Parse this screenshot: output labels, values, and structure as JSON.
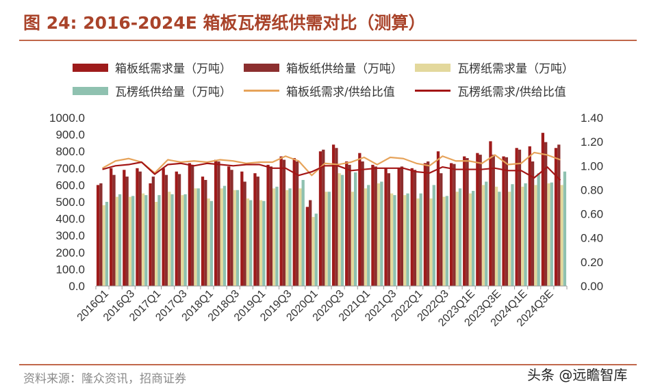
{
  "title": "图 24:  2016-2024E 箱板瓦楞纸供需对比（测算）",
  "source": "资料来源：隆众资讯，招商证券",
  "watermark": "头条 @远瞻智库",
  "colors": {
    "box_demand": "#9e1b1b",
    "box_supply": "#8c2f2f",
    "corr_demand": "#e3d89c",
    "corr_supply": "#8fc1b0",
    "box_ratio": "#e6a35a",
    "corr_ratio": "#a31515"
  },
  "chart_data": {
    "type": "bar+line",
    "title": "2016-2024E 箱板瓦楞纸供需对比（测算）",
    "categories": [
      "2016Q1",
      "2016Q2",
      "2016Q3",
      "2016Q4",
      "2017Q1",
      "2017Q2",
      "2017Q3",
      "2017Q4",
      "2018Q1",
      "2018Q2",
      "2018Q3",
      "2018Q4",
      "2019Q1",
      "2019Q2",
      "2019Q3",
      "2019Q4",
      "2020Q1",
      "2020Q2",
      "2020Q3",
      "2020Q4",
      "2021Q1",
      "2021Q2",
      "2021Q3",
      "2021Q4",
      "2022Q1",
      "2022Q2",
      "2022Q3",
      "2022Q4",
      "2023Q1E",
      "2023Q2E",
      "2023Q3E",
      "2023Q4E",
      "2024Q1E",
      "2024Q2E",
      "2024Q3E",
      "2024Q4E"
    ],
    "tick_labels": [
      "2016Q1",
      "2016Q3",
      "2017Q1",
      "2017Q3",
      "2018Q1",
      "2018Q3",
      "2019Q1",
      "2019Q3",
      "2020Q1",
      "2020Q3",
      "2021Q1",
      "2021Q3",
      "2022Q1",
      "2022Q3",
      "2023Q1E",
      "2023Q3E",
      "2024Q1E",
      "2024Q3E"
    ],
    "y_left": {
      "min": 0,
      "max": 1000,
      "step": 100,
      "ticks": [
        "0.0",
        "100.0",
        "200.0",
        "300.0",
        "400.0",
        "500.0",
        "600.0",
        "700.0",
        "800.0",
        "900.0",
        "1000.0"
      ]
    },
    "y_right": {
      "min": 0,
      "max": 1.4,
      "step": 0.2,
      "ticks": [
        "0.00",
        "0.20",
        "0.40",
        "0.60",
        "0.80",
        "1.00",
        "1.20",
        "1.40"
      ]
    },
    "series": [
      {
        "name": "箱板纸需求量（万吨）",
        "kind": "bar",
        "axis": "left",
        "color": "#9e1b1b",
        "values": [
          600,
          700,
          690,
          700,
          610,
          700,
          680,
          730,
          650,
          750,
          710,
          680,
          670,
          720,
          770,
          760,
          470,
          800,
          840,
          740,
          790,
          720,
          700,
          700,
          700,
          730,
          800,
          730,
          770,
          790,
          860,
          770,
          820,
          830,
          910,
          820
        ]
      },
      {
        "name": "箱板纸供给量（万吨）",
        "kind": "bar",
        "axis": "left",
        "color": "#8c2f2f",
        "values": [
          610,
          660,
          650,
          680,
          650,
          660,
          665,
          720,
          630,
          740,
          690,
          620,
          650,
          710,
          750,
          740,
          510,
          810,
          820,
          720,
          740,
          710,
          670,
          710,
          690,
          740,
          670,
          725,
          760,
          780,
          780,
          765,
          810,
          740,
          855,
          840
        ]
      },
      {
        "name": "瓦楞纸需求量（万吨）",
        "kind": "bar",
        "axis": "left",
        "color": "#e3d89c",
        "values": [
          480,
          530,
          530,
          550,
          500,
          560,
          540,
          580,
          520,
          580,
          570,
          520,
          510,
          580,
          570,
          580,
          410,
          560,
          670,
          560,
          580,
          610,
          550,
          540,
          520,
          520,
          530,
          560,
          550,
          600,
          590,
          560,
          590,
          600,
          610,
          600
        ]
      },
      {
        "name": "瓦楞纸供给量（万吨）",
        "kind": "bar",
        "axis": "left",
        "color": "#8fc1b0",
        "values": [
          500,
          545,
          535,
          540,
          540,
          545,
          545,
          580,
          505,
          595,
          570,
          510,
          505,
          590,
          580,
          630,
          430,
          560,
          660,
          675,
          600,
          620,
          540,
          550,
          550,
          600,
          535,
          580,
          565,
          620,
          560,
          605,
          610,
          670,
          615,
          680
        ]
      },
      {
        "name": "箱板纸需求/供给比值",
        "kind": "line",
        "axis": "right",
        "color": "#e6a35a",
        "values": [
          0.98,
          1.04,
          1.06,
          1.03,
          0.94,
          1.05,
          1.03,
          1.04,
          1.03,
          1.05,
          1.04,
          1.02,
          1.03,
          1.03,
          1.08,
          1.04,
          0.92,
          1.02,
          1.01,
          1.03,
          1.07,
          1.01,
          1.07,
          1.06,
          1.02,
          1.0,
          1.08,
          1.04,
          1.04,
          1.02,
          1.09,
          1.01,
          1.02,
          1.11,
          1.09,
          1.05
        ]
      },
      {
        "name": "瓦楞纸需求/供给比值",
        "kind": "line",
        "axis": "right",
        "color": "#a31515",
        "values": [
          0.97,
          1.0,
          1.01,
          1.03,
          0.93,
          1.01,
          1.02,
          1.0,
          1.02,
          1.01,
          1.0,
          1.01,
          1.01,
          0.98,
          0.98,
          0.92,
          0.95,
          1.0,
          1.0,
          0.96,
          0.97,
          0.98,
          0.98,
          0.98,
          0.95,
          0.94,
          0.99,
          0.97,
          0.97,
          0.97,
          0.98,
          0.96,
          0.96,
          0.9,
          0.99,
          0.88
        ]
      }
    ],
    "legend_position": "top"
  }
}
